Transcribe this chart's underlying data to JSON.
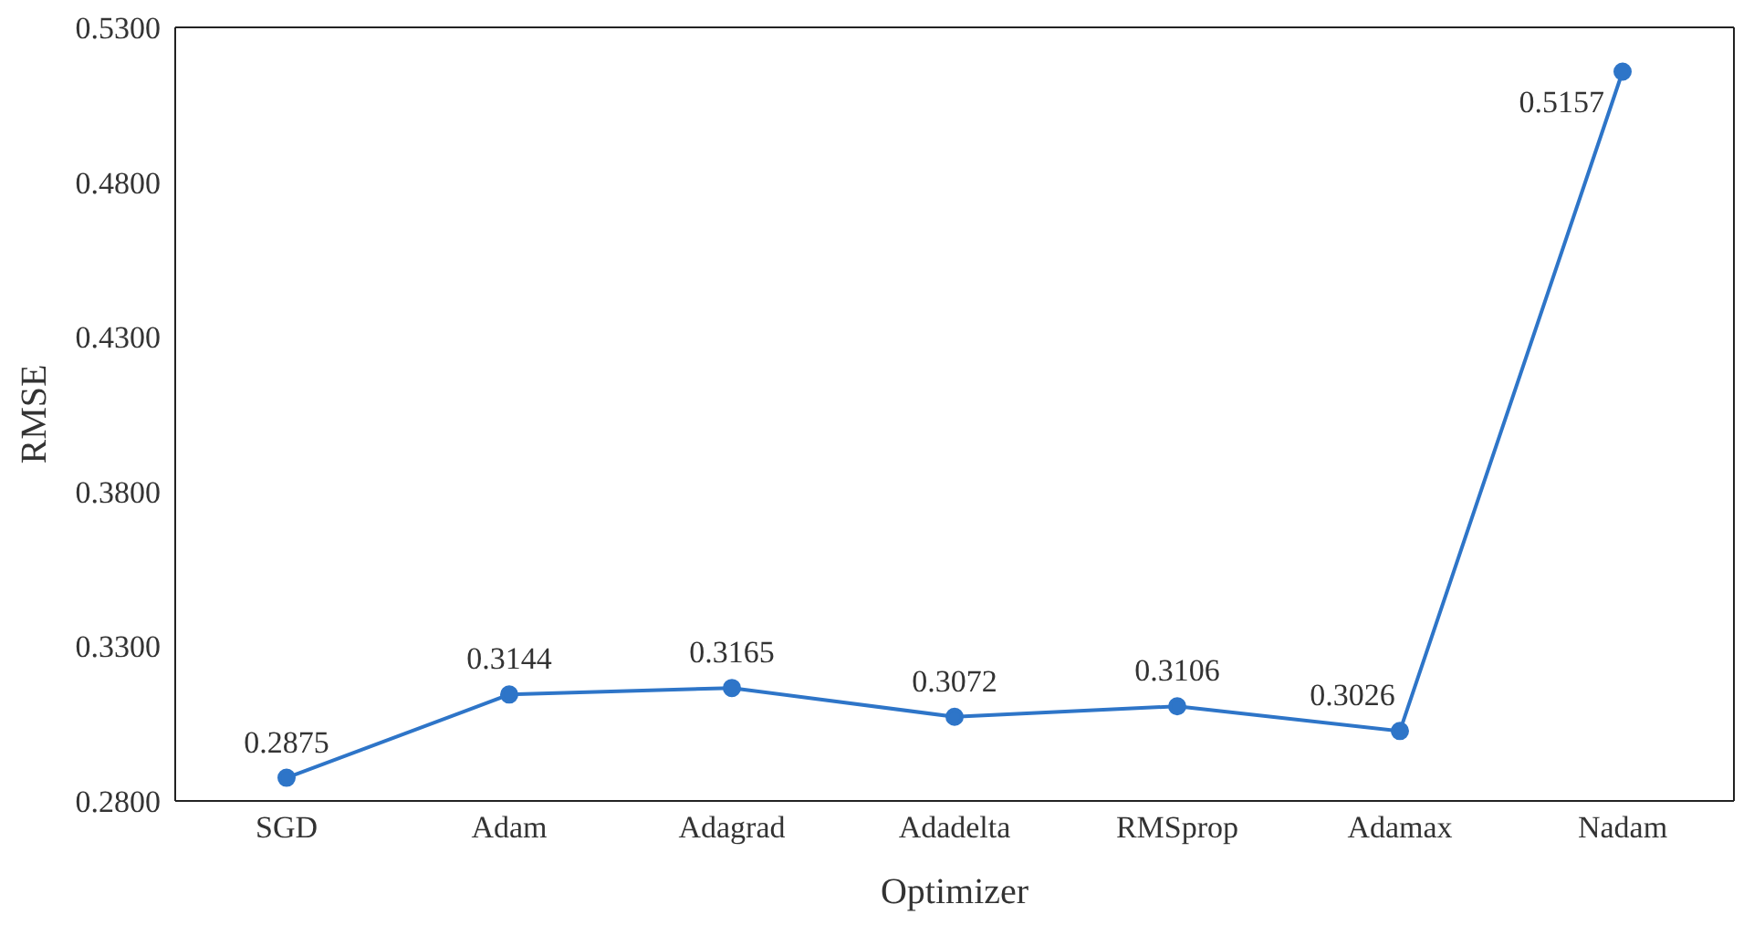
{
  "chart_data": {
    "type": "line",
    "xlabel": "Optimizer",
    "ylabel": "RMSE",
    "categories": [
      "SGD",
      "Adam",
      "Adagrad",
      "Adadelta",
      "RMSprop",
      "Adamax",
      "Nadam"
    ],
    "series": [
      {
        "color": "#2e75c8",
        "values": [
          0.2875,
          0.3144,
          0.3165,
          0.3072,
          0.3106,
          0.3026,
          0.5157
        ]
      }
    ],
    "ylim": [
      0.28,
      0.53
    ],
    "yticks": [
      {
        "value": 0.28,
        "label": "0.2800"
      },
      {
        "value": 0.33,
        "label": "0.3300"
      },
      {
        "value": 0.38,
        "label": "0.3800"
      },
      {
        "value": 0.43,
        "label": "0.4300"
      },
      {
        "value": 0.48,
        "label": "0.4800"
      },
      {
        "value": 0.53,
        "label": "0.5300"
      }
    ],
    "grid": false,
    "legend": false,
    "marker": "circle",
    "line_style": "solid",
    "data_labels": true
  }
}
